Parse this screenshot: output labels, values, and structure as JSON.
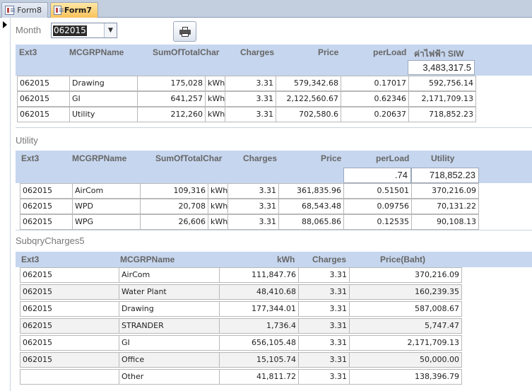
{
  "tabs": [
    {
      "label": "Form8"
    },
    {
      "label": "Form7"
    }
  ],
  "month": {
    "label": "Month",
    "value": "062015"
  },
  "print_icon": "printer-icon",
  "form1": {
    "headers": [
      "Ext3",
      "MCGRPName",
      "SumOfTotalChar",
      "Charges",
      "Price",
      "perLoad",
      "ค่าไฟฟ้า SIW"
    ],
    "total": "3,483,317.5",
    "rows": [
      [
        "062015",
        "Drawing",
        "175,028",
        "kWh",
        "3.31",
        "579,342.68",
        "0.17017",
        "592,756.14"
      ],
      [
        "062015",
        "GI",
        "641,257",
        "kWh",
        "3.31",
        "2,122,560.67",
        "0.62346",
        "2,171,709.13"
      ],
      [
        "062015",
        "Utility",
        "212,260",
        "kWh",
        "3.31",
        "702,580.6",
        "0.20637",
        "718,852.23"
      ]
    ]
  },
  "utility": {
    "title": "Utility",
    "headers": [
      "Ext3",
      "MCGRPName",
      "SumOfTotalChar",
      "Charges",
      "Price",
      "perLoad",
      "Utility"
    ],
    "perload_total": ".74",
    "utility_total": "718,852.23",
    "rows": [
      [
        "062015",
        "AirCom",
        "109,316",
        "kWh",
        "3.31",
        "361,835.96",
        "0.51501",
        "370,216.09"
      ],
      [
        "062015",
        "WPD",
        "20,708",
        "kWh",
        "3.31",
        "68,543.48",
        "0.09756",
        "70,131.22"
      ],
      [
        "062015",
        "WPG",
        "26,606",
        "kWh",
        "3.31",
        "88,065.86",
        "0.12535",
        "90,108.13"
      ]
    ]
  },
  "subqry": {
    "title": "SubqryCharges5",
    "headers": [
      "Ext3",
      "MCGRPName",
      "kWh",
      "Charges",
      "Price(Baht)"
    ],
    "rows": [
      [
        "062015",
        "AirCom",
        "111,847.76",
        "3.31",
        "370,216.09"
      ],
      [
        "062015",
        "Water Plant",
        "48,410.68",
        "3.31",
        "160,239.35"
      ],
      [
        "062015",
        "Drawing",
        "177,344.01",
        "3.31",
        "587,008.67"
      ],
      [
        "062015",
        "STRANDER",
        "1,736.4",
        "3.31",
        "5,747.47"
      ],
      [
        "062015",
        "GI",
        "656,105.48",
        "3.31",
        "2,171,709.13"
      ],
      [
        "062015",
        "Office",
        "15,105.74",
        "3.31",
        "50,000.00"
      ],
      [
        "",
        "Other",
        "41,811.72",
        "3.31",
        "138,396.79"
      ]
    ]
  }
}
